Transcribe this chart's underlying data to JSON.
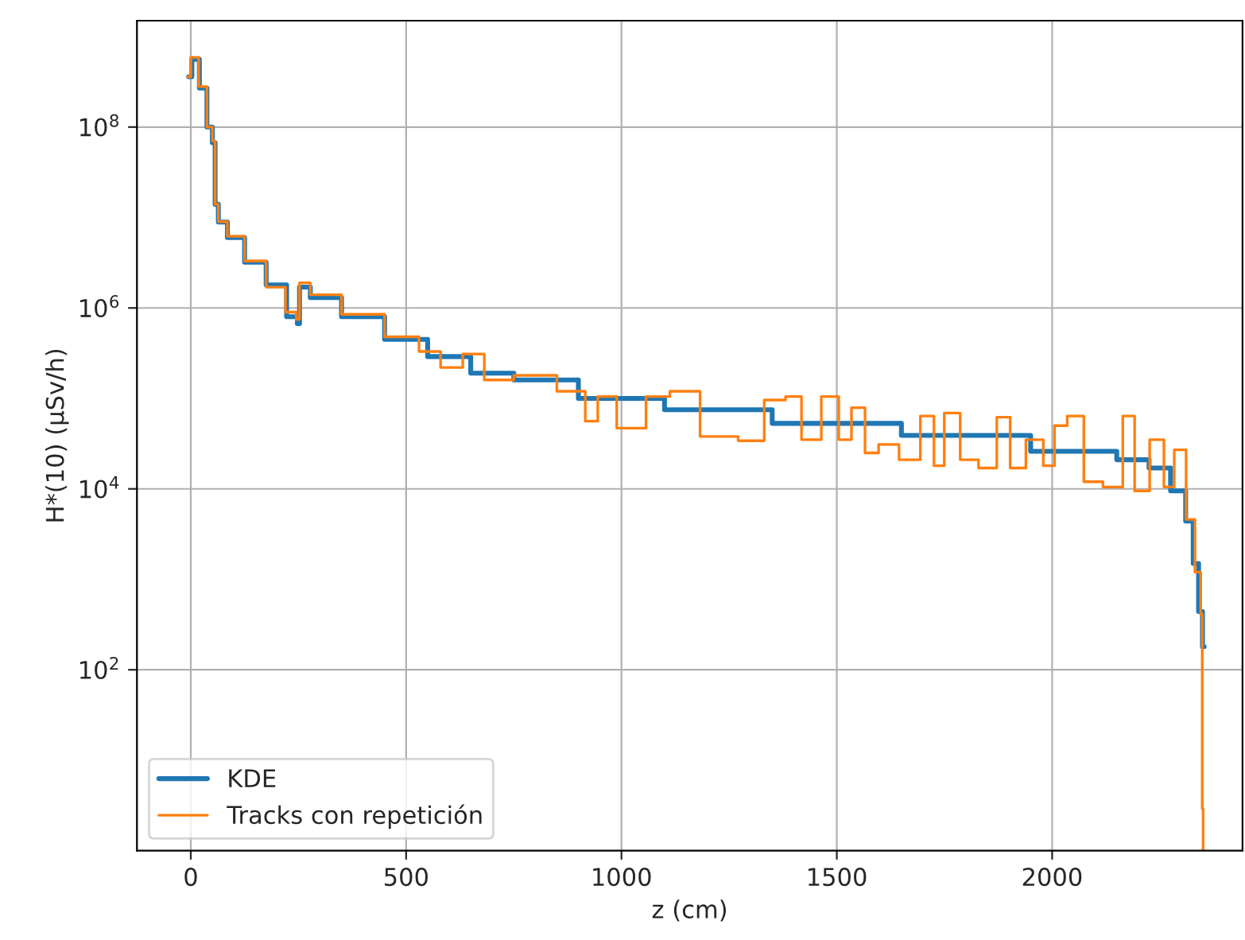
{
  "chart_data": {
    "type": "step",
    "xlabel": "z (cm)",
    "ylabel": "H*(10) (μSv/h)",
    "log": "y",
    "grid": true,
    "legend": "bottom left",
    "xlim": [
      -125,
      2442
    ],
    "xticks": [
      0,
      500,
      1000,
      1500,
      2000
    ],
    "ylim": [
      1,
      1500000000
    ],
    "yticks": [
      {
        "value": 100,
        "label": "10$^{2}$"
      },
      {
        "value": 10000,
        "label": "10$^{4}$"
      },
      {
        "value": 1000000,
        "label": "10$^{6}$"
      },
      {
        "value": 100000000,
        "label": "10$^{8}$"
      }
    ],
    "series": [
      {
        "name": "KDE",
        "color": "#1f77b4",
        "x": [
          -5,
          10,
          30,
          45,
          55,
          58,
          70,
          100,
          150,
          200,
          245,
          250,
          255,
          300,
          400,
          500,
          600,
          700,
          800,
          1000,
          1200,
          1500,
          1800,
          2100,
          2200,
          2250,
          2300,
          2320,
          2335,
          2345,
          2353
        ],
        "values": [
          360000000,
          560000000,
          270000000,
          100000000,
          67000000,
          14000000,
          8900000,
          6000000,
          3200000,
          1800000,
          800000,
          670000,
          1700000,
          1300000,
          800000,
          450000,
          290000,
          190000,
          160000,
          100000,
          75000,
          53000,
          39000,
          26000,
          21000,
          17000,
          9500,
          4400,
          1500,
          440,
          180
        ]
      },
      {
        "name": "Tracks con repetición",
        "color": "#ff7f0e",
        "x": [
          -7,
          7,
          30,
          45,
          55,
          58,
          70,
          100,
          150,
          200,
          240,
          250,
          255,
          300,
          400,
          500,
          560,
          600,
          663,
          700,
          800,
          900,
          932,
          958,
          1020,
          1094,
          1131,
          1234,
          1308,
          1355,
          1407,
          1429,
          1499,
          1510,
          1558,
          1573,
          1621,
          1668,
          1720,
          1731,
          1768,
          1805,
          1853,
          1890,
          1915,
          1963,
          1996,
          2015,
          2055,
          2092,
          2144,
          2184,
          2199,
          2254,
          2265,
          2302,
          2320,
          2343,
          2347,
          2350,
          2351
        ],
        "values": [
          360000000,
          590000000,
          280000000,
          100000000,
          70000000,
          14000000,
          9000000,
          6200000,
          3300000,
          1700000,
          900000,
          750000,
          1900000,
          1400000,
          850000,
          480000,
          330000,
          220000,
          310000,
          160000,
          180000,
          120000,
          56000,
          105000,
          47000,
          105000,
          120000,
          38000,
          34000,
          96000,
          105000,
          35000,
          105000,
          35000,
          79000,
          25000,
          31000,
          21000,
          64000,
          18000,
          69000,
          21000,
          17000,
          62000,
          17000,
          35000,
          18000,
          50000,
          64000,
          12000,
          10500,
          64000,
          9500,
          35000,
          10500,
          27000,
          4600,
          1200,
          410,
          2.9,
          1
        ]
      }
    ]
  }
}
